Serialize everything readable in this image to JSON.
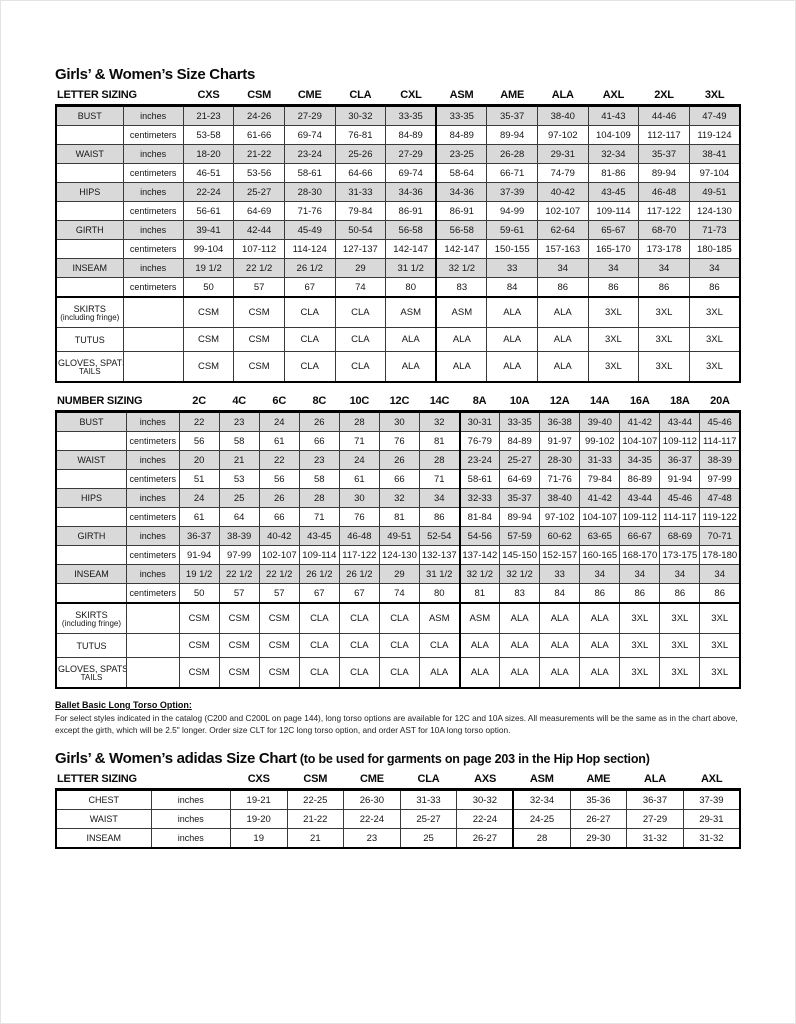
{
  "page": {
    "title1": "Girls’ & Women’s Size Charts",
    "title2_main": "Girls’ & Women’s adidas Size Chart",
    "title2_suffix": " (to be used for garments on page 203 in the Hip Hop section)",
    "note_title": "Ballet Basic Long Torso Option:",
    "note_line1": "For select styles indicated in the catalog (C200 and C200L on page 144), long torso options are available for 12C and 10A sizes. All measurements will be the same as in the chart above,",
    "note_line2": "except the girth, which will be 2.5\" longer. Order size CLT for 12C long torso option, and order AST for 10A long torso option."
  },
  "letter_table": {
    "header_label": "LETTER SIZING",
    "columns": [
      "CXS",
      "CSM",
      "CME",
      "CLA",
      "CXL",
      "ASM",
      "AME",
      "ALA",
      "AXL",
      "2XL",
      "3XL"
    ],
    "thick_after": 5,
    "rows": [
      {
        "label": "BUST",
        "unit": "inches",
        "shaded": true,
        "values": [
          "21-23",
          "24-26",
          "27-29",
          "30-32",
          "33-35",
          "33-35",
          "35-37",
          "38-40",
          "41-43",
          "44-46",
          "47-49"
        ]
      },
      {
        "label": "",
        "unit": "centimeters",
        "values": [
          "53-58",
          "61-66",
          "69-74",
          "76-81",
          "84-89",
          "84-89",
          "89-94",
          "97-102",
          "104-109",
          "112-117",
          "119-124"
        ]
      },
      {
        "label": "WAIST",
        "unit": "inches",
        "shaded": true,
        "values": [
          "18-20",
          "21-22",
          "23-24",
          "25-26",
          "27-29",
          "23-25",
          "26-28",
          "29-31",
          "32-34",
          "35-37",
          "38-41"
        ]
      },
      {
        "label": "",
        "unit": "centimeters",
        "values": [
          "46-51",
          "53-56",
          "58-61",
          "64-66",
          "69-74",
          "58-64",
          "66-71",
          "74-79",
          "81-86",
          "89-94",
          "97-104"
        ]
      },
      {
        "label": "HIPS",
        "unit": "inches",
        "shaded": true,
        "values": [
          "22-24",
          "25-27",
          "28-30",
          "31-33",
          "34-36",
          "34-36",
          "37-39",
          "40-42",
          "43-45",
          "46-48",
          "49-51"
        ]
      },
      {
        "label": "",
        "unit": "centimeters",
        "values": [
          "56-61",
          "64-69",
          "71-76",
          "79-84",
          "86-91",
          "86-91",
          "94-99",
          "102-107",
          "109-114",
          "117-122",
          "124-130"
        ]
      },
      {
        "label": "GIRTH",
        "unit": "inches",
        "shaded": true,
        "values": [
          "39-41",
          "42-44",
          "45-49",
          "50-54",
          "56-58",
          "56-58",
          "59-61",
          "62-64",
          "65-67",
          "68-70",
          "71-73"
        ]
      },
      {
        "label": "",
        "unit": "centimeters",
        "values": [
          "99-104",
          "107-112",
          "114-124",
          "127-137",
          "142-147",
          "142-147",
          "150-155",
          "157-163",
          "165-170",
          "173-178",
          "180-185"
        ]
      },
      {
        "label": "INSEAM",
        "unit": "inches",
        "shaded": true,
        "values": [
          "19 1/2",
          "22 1/2",
          "26 1/2",
          "29",
          "31 1/2",
          "32 1/2",
          "33",
          "34",
          "34",
          "34",
          "34"
        ]
      },
      {
        "label": "",
        "unit": "centimeters",
        "values": [
          "50",
          "57",
          "67",
          "74",
          "80",
          "83",
          "84",
          "86",
          "86",
          "86",
          "86"
        ]
      },
      {
        "label": "SKIRTS",
        "label2": "(including fringe)",
        "unit": "",
        "thick_top": true,
        "tall": true,
        "values": [
          "CSM",
          "CSM",
          "CLA",
          "CLA",
          "ASM",
          "ASM",
          "ALA",
          "ALA",
          "3XL",
          "3XL",
          "3XL"
        ]
      },
      {
        "label": "TUTUS",
        "unit": "",
        "mid": true,
        "values": [
          "CSM",
          "CSM",
          "CLA",
          "CLA",
          "ALA",
          "ALA",
          "ALA",
          "ALA",
          "3XL",
          "3XL",
          "3XL"
        ]
      },
      {
        "label": "GLOVES, SPATS,",
        "label2": "TAILS",
        "unit": "",
        "tall": true,
        "values": [
          "CSM",
          "CSM",
          "CLA",
          "CLA",
          "ALA",
          "ALA",
          "ALA",
          "ALA",
          "3XL",
          "3XL",
          "3XL"
        ]
      }
    ]
  },
  "number_table": {
    "header_label": "NUMBER SIZING",
    "columns": [
      "2C",
      "4C",
      "6C",
      "8C",
      "10C",
      "12C",
      "14C",
      "8A",
      "10A",
      "12A",
      "14A",
      "16A",
      "18A",
      "20A"
    ],
    "thick_after": 7,
    "rows": [
      {
        "label": "BUST",
        "unit": "inches",
        "shaded": true,
        "values": [
          "22",
          "23",
          "24",
          "26",
          "28",
          "30",
          "32",
          "30-31",
          "33-35",
          "36-38",
          "39-40",
          "41-42",
          "43-44",
          "45-46"
        ]
      },
      {
        "label": "",
        "unit": "centimeters",
        "values": [
          "56",
          "58",
          "61",
          "66",
          "71",
          "76",
          "81",
          "76-79",
          "84-89",
          "91-97",
          "99-102",
          "104-107",
          "109-112",
          "114-117"
        ]
      },
      {
        "label": "WAIST",
        "unit": "inches",
        "shaded": true,
        "values": [
          "20",
          "21",
          "22",
          "23",
          "24",
          "26",
          "28",
          "23-24",
          "25-27",
          "28-30",
          "31-33",
          "34-35",
          "36-37",
          "38-39"
        ]
      },
      {
        "label": "",
        "unit": "centimeters",
        "values": [
          "51",
          "53",
          "56",
          "58",
          "61",
          "66",
          "71",
          "58-61",
          "64-69",
          "71-76",
          "79-84",
          "86-89",
          "91-94",
          "97-99"
        ]
      },
      {
        "label": "HIPS",
        "unit": "inches",
        "shaded": true,
        "values": [
          "24",
          "25",
          "26",
          "28",
          "30",
          "32",
          "34",
          "32-33",
          "35-37",
          "38-40",
          "41-42",
          "43-44",
          "45-46",
          "47-48"
        ]
      },
      {
        "label": "",
        "unit": "centimeters",
        "values": [
          "61",
          "64",
          "66",
          "71",
          "76",
          "81",
          "86",
          "81-84",
          "89-94",
          "97-102",
          "104-107",
          "109-112",
          "114-117",
          "119-122"
        ]
      },
      {
        "label": "GIRTH",
        "unit": "inches",
        "shaded": true,
        "values": [
          "36-37",
          "38-39",
          "40-42",
          "43-45",
          "46-48",
          "49-51",
          "52-54",
          "54-56",
          "57-59",
          "60-62",
          "63-65",
          "66-67",
          "68-69",
          "70-71"
        ]
      },
      {
        "label": "",
        "unit": "centimeters",
        "values": [
          "91-94",
          "97-99",
          "102-107",
          "109-114",
          "117-122",
          "124-130",
          "132-137",
          "137-142",
          "145-150",
          "152-157",
          "160-165",
          "168-170",
          "173-175",
          "178-180"
        ]
      },
      {
        "label": "INSEAM",
        "unit": "inches",
        "shaded": true,
        "values": [
          "19 1/2",
          "22 1/2",
          "22 1/2",
          "26 1/2",
          "26 1/2",
          "29",
          "31 1/2",
          "32 1/2",
          "32 1/2",
          "33",
          "34",
          "34",
          "34",
          "34"
        ]
      },
      {
        "label": "",
        "unit": "centimeters",
        "values": [
          "50",
          "57",
          "57",
          "67",
          "67",
          "74",
          "80",
          "81",
          "83",
          "84",
          "86",
          "86",
          "86",
          "86"
        ]
      },
      {
        "label": "SKIRTS",
        "label2": "(including fringe)",
        "unit": "",
        "thick_top": true,
        "tall": true,
        "values": [
          "CSM",
          "CSM",
          "CSM",
          "CLA",
          "CLA",
          "CLA",
          "ASM",
          "ASM",
          "ALA",
          "ALA",
          "ALA",
          "3XL",
          "3XL",
          "3XL"
        ]
      },
      {
        "label": "TUTUS",
        "unit": "",
        "mid": true,
        "values": [
          "CSM",
          "CSM",
          "CSM",
          "CLA",
          "CLA",
          "CLA",
          "CLA",
          "ALA",
          "ALA",
          "ALA",
          "ALA",
          "3XL",
          "3XL",
          "3XL"
        ]
      },
      {
        "label": "GLOVES, SPATS,",
        "label2": "TAILS",
        "unit": "",
        "tall": true,
        "values": [
          "CSM",
          "CSM",
          "CSM",
          "CLA",
          "CLA",
          "CLA",
          "ALA",
          "ALA",
          "ALA",
          "ALA",
          "ALA",
          "3XL",
          "3XL",
          "3XL"
        ]
      }
    ]
  },
  "adidas_table": {
    "header_label": "LETTER SIZING",
    "columns": [
      "CXS",
      "CSM",
      "CME",
      "CLA",
      "AXS",
      "ASM",
      "AME",
      "ALA",
      "AXL"
    ],
    "thick_after": 5,
    "rows": [
      {
        "label": "CHEST",
        "unit": "inches",
        "values": [
          "19-21",
          "22-25",
          "26-30",
          "31-33",
          "30-32",
          "32-34",
          "35-36",
          "36-37",
          "37-39"
        ]
      },
      {
        "label": "WAIST",
        "unit": "inches",
        "values": [
          "19-20",
          "21-22",
          "22-24",
          "25-27",
          "22-24",
          "24-25",
          "26-27",
          "27-29",
          "29-31"
        ]
      },
      {
        "label": "INSEAM",
        "unit": "inches",
        "values": [
          "19",
          "21",
          "23",
          "25",
          "26-27",
          "28",
          "29-30",
          "31-32",
          "31-32"
        ]
      }
    ]
  },
  "colors": {
    "shading": "#d9d9d9",
    "border_thick": "#000000",
    "border_thin": "#3a3a3a",
    "text": "#111111"
  }
}
